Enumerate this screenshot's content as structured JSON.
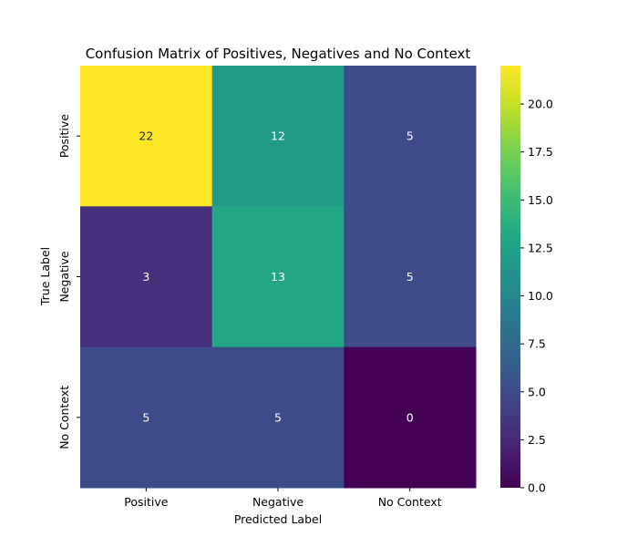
{
  "chart_data": {
    "type": "heatmap",
    "title": "Confusion Matrix of Positives, Negatives and No Context",
    "xlabel": "Predicted Label",
    "ylabel": "True Label",
    "x_categories": [
      "Positive",
      "Negative",
      "No Context"
    ],
    "y_categories": [
      "Positive",
      "Negative",
      "No Context"
    ],
    "values": [
      [
        22,
        12,
        5
      ],
      [
        3,
        13,
        5
      ],
      [
        5,
        5,
        0
      ]
    ],
    "colormap": "viridis",
    "color_range": [
      0,
      22
    ],
    "colorbar_ticks": [
      "0.0",
      "2.5",
      "5.0",
      "7.5",
      "10.0",
      "12.5",
      "15.0",
      "17.5",
      "20.0"
    ],
    "grid": false,
    "legend": "colorbar-right"
  }
}
